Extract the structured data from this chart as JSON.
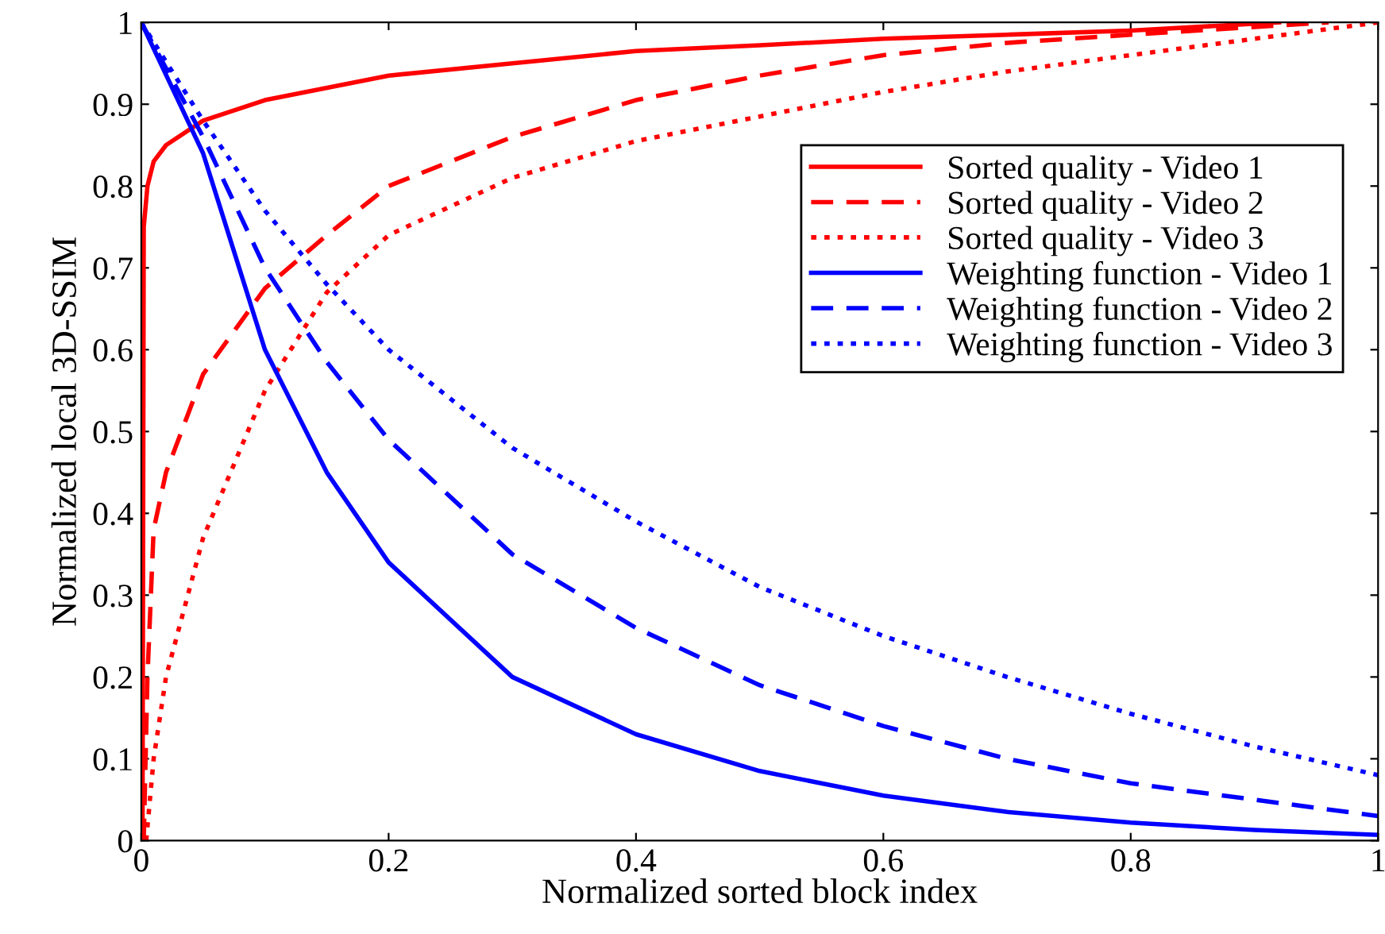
{
  "chart_data": {
    "type": "line",
    "xlabel": "Normalized sorted block index",
    "ylabel": "Normalized local 3D-SSIM",
    "xlim": [
      0,
      1
    ],
    "ylim": [
      0,
      1
    ],
    "xticks": [
      0,
      0.2,
      0.4,
      0.6,
      0.8,
      1
    ],
    "yticks": [
      0,
      0.1,
      0.2,
      0.3,
      0.4,
      0.5,
      0.6,
      0.7,
      0.8,
      0.9,
      1
    ],
    "grid": false,
    "legend": "top right",
    "series": [
      {
        "name": "Sorted quality - Video 1",
        "color": "#ff0000",
        "line_style": "solid",
        "x": [
          0.001,
          0.002,
          0.005,
          0.01,
          0.02,
          0.05,
          0.1,
          0.2,
          0.3,
          0.4,
          0.5,
          0.6,
          0.7,
          0.8,
          0.92
        ],
        "values": [
          0,
          0.75,
          0.8,
          0.83,
          0.85,
          0.88,
          0.905,
          0.935,
          0.95,
          0.965,
          0.972,
          0.98,
          0.985,
          0.99,
          1
        ]
      },
      {
        "name": "Sorted quality - Video 2",
        "color": "#ff0000",
        "line_style": "dashed",
        "x": [
          0.002,
          0.005,
          0.01,
          0.02,
          0.05,
          0.1,
          0.15,
          0.2,
          0.3,
          0.4,
          0.5,
          0.6,
          0.7,
          0.8,
          0.96
        ],
        "values": [
          0,
          0.2,
          0.38,
          0.45,
          0.57,
          0.675,
          0.74,
          0.8,
          0.86,
          0.905,
          0.935,
          0.96,
          0.975,
          0.985,
          1
        ]
      },
      {
        "name": "Sorted quality - Video 3",
        "color": "#ff0000",
        "line_style": "dotted",
        "x": [
          0.004,
          0.01,
          0.02,
          0.05,
          0.1,
          0.15,
          0.2,
          0.3,
          0.4,
          0.5,
          0.6,
          0.7,
          0.8,
          0.9,
          1
        ],
        "values": [
          0,
          0.1,
          0.2,
          0.37,
          0.55,
          0.67,
          0.74,
          0.81,
          0.855,
          0.885,
          0.915,
          0.94,
          0.96,
          0.98,
          1
        ]
      },
      {
        "name": "Weighting function - Video 1",
        "color": "#0000ff",
        "line_style": "solid",
        "x": [
          0,
          0.05,
          0.1,
          0.15,
          0.2,
          0.3,
          0.4,
          0.5,
          0.6,
          0.7,
          0.8,
          0.9,
          1
        ],
        "values": [
          1,
          0.84,
          0.6,
          0.45,
          0.34,
          0.2,
          0.13,
          0.085,
          0.055,
          0.035,
          0.022,
          0.013,
          0.007
        ]
      },
      {
        "name": "Weighting function - Video 2",
        "color": "#0000ff",
        "line_style": "dashed",
        "x": [
          0,
          0.05,
          0.1,
          0.15,
          0.2,
          0.3,
          0.4,
          0.5,
          0.6,
          0.7,
          0.8,
          0.9,
          1
        ],
        "values": [
          1,
          0.86,
          0.7,
          0.585,
          0.49,
          0.35,
          0.26,
          0.19,
          0.14,
          0.1,
          0.07,
          0.05,
          0.03
        ]
      },
      {
        "name": "Weighting function - Video 3",
        "color": "#0000ff",
        "line_style": "dotted",
        "x": [
          0,
          0.05,
          0.1,
          0.15,
          0.2,
          0.3,
          0.4,
          0.5,
          0.6,
          0.7,
          0.8,
          0.9,
          1
        ],
        "values": [
          1,
          0.88,
          0.77,
          0.68,
          0.6,
          0.48,
          0.39,
          0.31,
          0.25,
          0.2,
          0.155,
          0.115,
          0.08
        ]
      }
    ]
  }
}
